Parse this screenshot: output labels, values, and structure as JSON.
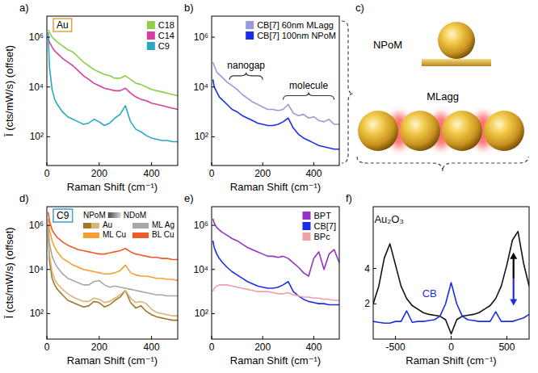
{
  "chart_data": [
    {
      "type": "line",
      "panel": "a)",
      "title": "Au",
      "x_label": "Raman Shift (cm⁻¹)",
      "y_label": "Ī (cts/mW/s) (offset)",
      "log": "y",
      "xlim": [
        0,
        500
      ],
      "ylim": [
        7,
        7000000
      ],
      "xticks": [
        0,
        200,
        400
      ],
      "yticks": [
        {
          "value": 100,
          "label": "10²"
        },
        {
          "value": 10000,
          "label": "10⁴"
        },
        {
          "value": 1000000,
          "label": "10⁶"
        }
      ],
      "legend": "upper right",
      "x": [
        5,
        10,
        20,
        30,
        40,
        60,
        80,
        100,
        120,
        140,
        160,
        180,
        200,
        220,
        240,
        260,
        280,
        300,
        320,
        340,
        360,
        380,
        400,
        420,
        440,
        460,
        480,
        500
      ],
      "series": [
        {
          "name": "C18",
          "color": "#8ccf48",
          "values": [
            2000000,
            1580000,
            1000000,
            794000,
            631000,
            447000,
            316000,
            251000,
            158000,
            100000,
            70800,
            50100,
            39800,
            31600,
            28200,
            22400,
            22400,
            28200,
            20000,
            14100,
            12600,
            10000,
            7940,
            7080,
            6310,
            5620,
            5010,
            4470
          ]
        },
        {
          "name": "C14",
          "color": "#d43f9f",
          "values": [
            891000,
            631000,
            398000,
            282000,
            224000,
            141000,
            100000,
            70800,
            44700,
            28200,
            20000,
            14100,
            11200,
            8910,
            7940,
            7080,
            7080,
            8910,
            5620,
            3980,
            3160,
            2820,
            2240,
            2000,
            1780,
            1580,
            1410,
            1260
          ]
        },
        {
          "name": "C9",
          "color": "#2aa6c6",
          "values": [
            1580000,
            63100,
            7940,
            3160,
            2000,
            1000,
            631,
            501,
            398,
            316,
            355,
            501,
            398,
            282,
            355,
            562,
            794,
            1780,
            398,
            200,
            158,
            112,
            89.1,
            79.4,
            70.8,
            70.8,
            63.1,
            63.1
          ]
        }
      ]
    },
    {
      "type": "line",
      "panel": "b)",
      "x_label": "Raman Shift (cm⁻¹)",
      "log": "y",
      "xlim": [
        0,
        500
      ],
      "ylim": [
        7,
        7000000
      ],
      "xticks": [
        0,
        200,
        400
      ],
      "yticks": [
        {
          "value": 100,
          "label": "10²"
        },
        {
          "value": 10000,
          "label": "10⁴"
        },
        {
          "value": 1000000,
          "label": "10⁶"
        }
      ],
      "legend": "upper right",
      "x": [
        5,
        10,
        20,
        30,
        40,
        60,
        80,
        100,
        120,
        140,
        160,
        180,
        200,
        220,
        240,
        260,
        280,
        300,
        320,
        340,
        360,
        380,
        400,
        420,
        440,
        460,
        480,
        500
      ],
      "series": [
        {
          "name": "CB[7] 60nm MLagg",
          "color": "#9b98d6",
          "values": [
            100000,
            70800,
            39800,
            31600,
            25100,
            15800,
            11200,
            7940,
            5010,
            3550,
            2510,
            2000,
            1580,
            1260,
            1260,
            1120,
            1260,
            2000,
            891,
            708,
            794,
            562,
            631,
            447,
            398,
            501,
            316,
            316
          ]
        },
        {
          "name": "CB[7] 100nm NPoM",
          "color": "#1a2ee8",
          "values": [
            20000,
            10000,
            6310,
            3980,
            3160,
            2000,
            1260,
            1000,
            708,
            562,
            447,
            355,
            316,
            282,
            282,
            316,
            398,
            562,
            224,
            126,
            89.1,
            70.8,
            56.2,
            44.7,
            39.8,
            35.5,
            31.6,
            31.6
          ]
        }
      ],
      "annotations": [
        {
          "text": "nanogap",
          "x_range": [
            70,
            200
          ],
          "y": 28200
        },
        {
          "text": "molecule",
          "x_range": [
            280,
            480
          ],
          "y": 4470
        }
      ]
    },
    {
      "type": "line",
      "panel": "d)",
      "title": "C9",
      "x_label": "Raman Shift (cm⁻¹)",
      "y_label": "Ī (cts/mW/s) (offset)",
      "log": "y",
      "xlim": [
        0,
        500
      ],
      "ylim": [
        7,
        7000000
      ],
      "xticks": [
        0,
        200,
        400
      ],
      "yticks": [
        {
          "value": 100,
          "label": "10²"
        },
        {
          "value": 10000,
          "label": "10⁴"
        },
        {
          "value": 1000000,
          "label": "10⁶"
        }
      ],
      "legend": "upper right",
      "legend_title": [
        "NPoM",
        "NDoM"
      ],
      "x": [
        5,
        10,
        20,
        30,
        40,
        60,
        80,
        100,
        120,
        140,
        160,
        180,
        200,
        220,
        240,
        260,
        280,
        300,
        320,
        340,
        360,
        380,
        400,
        420,
        440,
        460,
        480,
        500
      ],
      "series": [
        {
          "name": "Au",
          "color": "#a07828",
          "values": [
            398000,
            25100,
            3980,
            2000,
            1260,
            708,
            398,
            316,
            251,
            200,
            224,
            355,
            316,
            200,
            251,
            398,
            562,
            1120,
            316,
            178,
            224,
            126,
            89.1,
            70.8,
            63.1,
            56.2,
            50.1,
            50.1
          ]
        },
        {
          "name": "Au",
          "color": "#d9b577",
          "values": [
            631000,
            50100,
            7940,
            3550,
            2240,
            1260,
            794,
            562,
            447,
            355,
            355,
            501,
            447,
            316,
            355,
            501,
            708,
            1120,
            501,
            316,
            355,
            282,
            158,
            112,
            100,
            89.1,
            79.4,
            79.4
          ]
        },
        {
          "name": "ML Ag",
          "color": "#a8a8a8",
          "values": [
            1000000,
            158000,
            39800,
            20000,
            12600,
            6310,
            3980,
            3160,
            2510,
            2000,
            2000,
            2820,
            3160,
            2000,
            1580,
            1780,
            1580,
            1410,
            1260,
            1120,
            1000,
            891,
            794,
            708,
            708,
            631,
            631,
            631
          ]
        },
        {
          "name": "ML Cu",
          "color": "#f5a030",
          "values": [
            2000000,
            631000,
            200000,
            100000,
            63100,
            31600,
            22400,
            15800,
            12600,
            10000,
            8910,
            7940,
            7080,
            6310,
            6310,
            7080,
            8910,
            15800,
            7080,
            5620,
            5010,
            5010,
            4470,
            3980,
            3980,
            3550,
            3550,
            3160
          ]
        },
        {
          "name": "BL Cu",
          "color": "#f05a28",
          "values": [
            3980000,
            1580000,
            631000,
            398000,
            282000,
            178000,
            126000,
            100000,
            79400,
            70800,
            63100,
            56200,
            50100,
            50100,
            56200,
            63100,
            70800,
            89100,
            63100,
            50100,
            44700,
            39800,
            35500,
            35500,
            31600,
            31600,
            28200,
            28200
          ]
        }
      ]
    },
    {
      "type": "line",
      "panel": "e)",
      "x_label": "Raman Shift (cm⁻¹)",
      "log": "y",
      "xlim": [
        0,
        500
      ],
      "ylim": [
        7,
        7000000
      ],
      "xticks": [
        0,
        200,
        400
      ],
      "yticks": [
        {
          "value": 100,
          "label": "10²"
        },
        {
          "value": 10000,
          "label": "10⁴"
        },
        {
          "value": 1000000,
          "label": "10⁶"
        }
      ],
      "legend": "upper right",
      "x": [
        5,
        10,
        20,
        30,
        40,
        60,
        80,
        100,
        120,
        140,
        160,
        180,
        200,
        220,
        240,
        260,
        280,
        300,
        320,
        340,
        360,
        380,
        400,
        420,
        440,
        460,
        480,
        500
      ],
      "series": [
        {
          "name": "BPT",
          "color": "#9232c6",
          "values": [
            2000000,
            1260000,
            794000,
            631000,
            501000,
            355000,
            251000,
            200000,
            141000,
            100000,
            79400,
            63100,
            50100,
            39800,
            39800,
            35500,
            39800,
            31600,
            20000,
            12600,
            7080,
            5010,
            31600,
            63100,
            10000,
            50100,
            79400,
            20000
          ]
        },
        {
          "name": "CB[7]",
          "color": "#1a2ee8",
          "values": [
            200000,
            100000,
            50100,
            31600,
            22400,
            12600,
            7940,
            5620,
            3980,
            2820,
            2240,
            1780,
            1580,
            1410,
            1410,
            1580,
            2000,
            2820,
            1000,
            631,
            447,
            355,
            316,
            282,
            282,
            251,
            251,
            251
          ]
        },
        {
          "name": "BPc",
          "color": "#f2a0a8",
          "values": [
            1000,
            1410,
            1780,
            2000,
            2000,
            2000,
            1780,
            1580,
            1410,
            1260,
            1120,
            1000,
            1000,
            1000,
            891,
            794,
            794,
            891,
            708,
            631,
            562,
            562,
            501,
            501,
            447,
            447,
            398,
            398
          ]
        }
      ]
    },
    {
      "type": "line",
      "panel": "f)",
      "x_label": "Raman Shift (cm⁻¹)",
      "xlim": [
        -700,
        700
      ],
      "ylim": [
        0,
        7.5
      ],
      "xticks": [
        -500,
        0,
        500
      ],
      "yticks": [
        2,
        4
      ],
      "x": [
        -700,
        -650,
        -600,
        -550,
        -500,
        -450,
        -400,
        -350,
        -300,
        -250,
        -200,
        -150,
        -100,
        -50,
        0,
        50,
        100,
        150,
        200,
        250,
        300,
        350,
        400,
        450,
        500,
        550,
        600,
        650,
        700
      ],
      "series": [
        {
          "name": "Au₂O₃",
          "color": "#111111",
          "label_x": -690,
          "label_y": 6.6,
          "values": [
            2.0,
            3.0,
            4.6,
            5.4,
            4.2,
            3.0,
            2.3,
            1.9,
            1.7,
            1.5,
            1.4,
            1.35,
            1.3,
            1.1,
            0.3,
            1.1,
            1.3,
            1.35,
            1.4,
            1.5,
            1.7,
            1.9,
            2.3,
            3.0,
            4.2,
            5.6,
            6.1,
            4.3,
            3.0
          ]
        },
        {
          "name": "CB",
          "color": "#1a2ee8",
          "label_x": -260,
          "label_y": 2.4,
          "values": [
            1.0,
            0.95,
            0.9,
            0.9,
            1.0,
            1.0,
            1.6,
            0.95,
            1.0,
            1.0,
            1.05,
            1.1,
            1.3,
            2.0,
            3.2,
            2.0,
            1.3,
            1.1,
            1.05,
            1.0,
            1.0,
            1.0,
            1.55,
            1.0,
            1.0,
            1.0,
            1.1,
            1.2,
            1.4
          ]
        }
      ],
      "arrow": {
        "x": 560,
        "y": [
          1.9,
          4.9
        ]
      }
    }
  ],
  "diagram": {
    "panel": "c)",
    "labels": [
      "NPoM",
      "MLagg"
    ]
  }
}
